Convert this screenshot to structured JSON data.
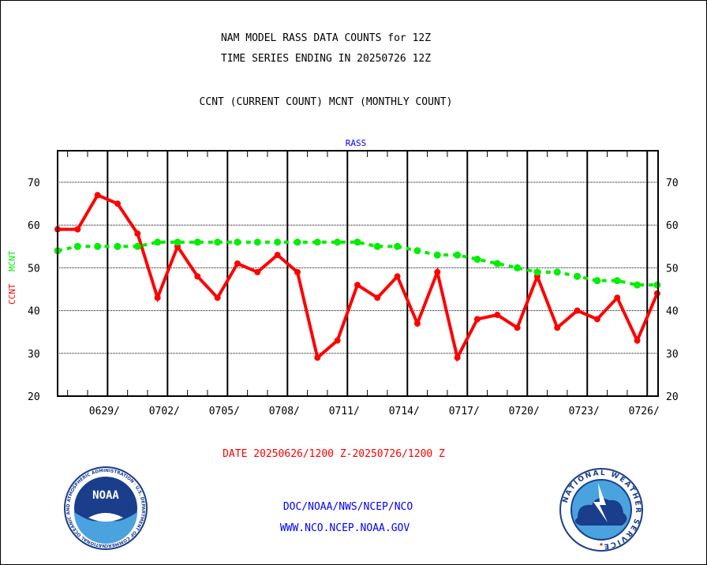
{
  "chart_data": {
    "type": "line",
    "title_lines": [
      "NAM MODEL RASS DATA COUNTS for 12Z",
      "TIME SERIES ENDING IN 20250726 12Z"
    ],
    "subtitle": "CCNT (CURRENT COUNT) MCNT (MONTHLY COUNT)",
    "panel_label": "RASS",
    "ylabel_ccnt": "CCNT",
    "ylabel_mcnt": "MCNT",
    "xlabel": "DATE 20250626/1200 Z-20250726/1200 Z",
    "ylim": [
      20,
      77
    ],
    "yticks": [
      20,
      30,
      40,
      50,
      60,
      70
    ],
    "xtick_labels": [
      "0629/",
      "0702/",
      "0705/",
      "0708/",
      "0711/",
      "0714/",
      "0717/",
      "0720/",
      "0723/",
      "0726/"
    ],
    "grid": true,
    "days": 31,
    "series": [
      {
        "name": "CCNT",
        "color": "#ff0000",
        "values": [
          59,
          59,
          67,
          65,
          58,
          43,
          55,
          48,
          43,
          51,
          49,
          53,
          49,
          29,
          33,
          46,
          43,
          48,
          37,
          49,
          29,
          38,
          39,
          36,
          48,
          36,
          40,
          38,
          43,
          33,
          44
        ]
      },
      {
        "name": "MCNT",
        "color": "#00ee00",
        "values": [
          54,
          55,
          55,
          55,
          55,
          56,
          56,
          56,
          56,
          56,
          56,
          56,
          56,
          56,
          56,
          56,
          55,
          55,
          54,
          53,
          53,
          52,
          51,
          50,
          49,
          49,
          48,
          47,
          47,
          46,
          46
        ]
      }
    ]
  },
  "footer": {
    "line1": "DOC/NOAA/NWS/NCEP/NCO",
    "line2": "WWW.NCO.NCEP.NOAA.GOV",
    "noaa_logo_text": "NOAA",
    "noaa_ring_text": "NATIONAL OCEANIC AND ATMOSPHERIC ADMINISTRATION · U.S. DEPARTMENT OF COMMERCE",
    "nws_ring_text": "NATIONAL WEATHER SERVICE"
  }
}
